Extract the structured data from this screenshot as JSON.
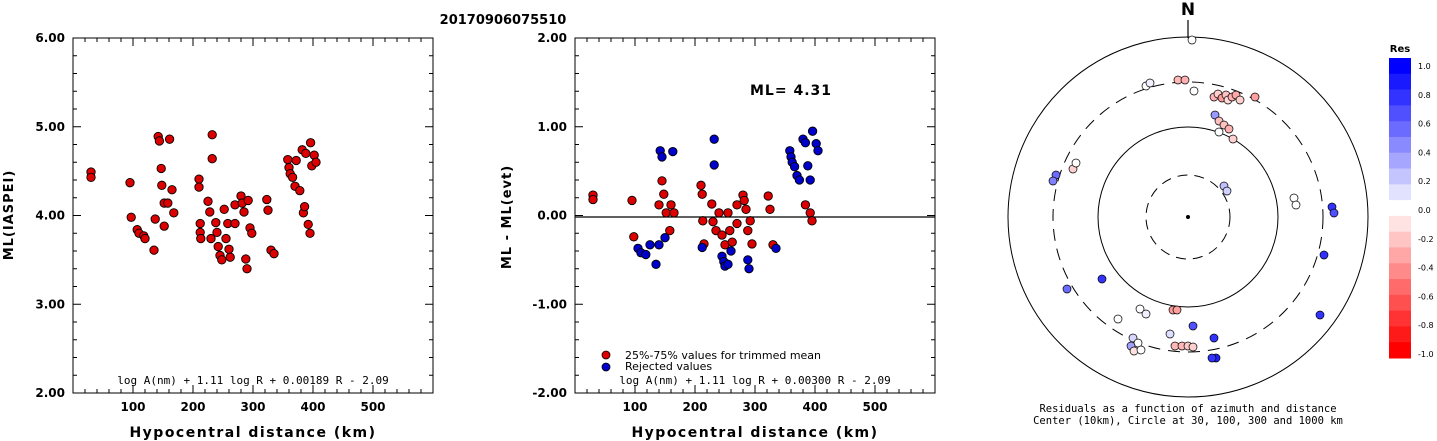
{
  "page": {
    "title": "20170906075510"
  },
  "chart_data": [
    {
      "id": "left",
      "type": "scatter",
      "xlabel": "Hypocentral distance (km)",
      "ylabel": "ML(IASPEI)",
      "xlim": [
        0,
        600
      ],
      "ylim": [
        2.0,
        6.0
      ],
      "xticks": [
        "100",
        "200",
        "300",
        "400",
        "500"
      ],
      "yticks": [
        "2.00",
        "3.00",
        "4.00",
        "5.00",
        "6.00"
      ],
      "formula": "log A(nm) + 1.11 log R + 0.00189 R - 2.09",
      "points": [
        [
          30,
          4.49
        ],
        [
          30,
          4.43
        ],
        [
          95,
          4.37
        ],
        [
          97,
          3.98
        ],
        [
          107,
          3.84
        ],
        [
          110,
          3.8
        ],
        [
          118,
          3.77
        ],
        [
          120,
          3.74
        ],
        [
          135,
          3.61
        ],
        [
          137,
          3.96
        ],
        [
          142,
          4.89
        ],
        [
          144,
          4.84
        ],
        [
          147,
          4.53
        ],
        [
          148,
          4.34
        ],
        [
          152,
          4.14
        ],
        [
          152,
          3.88
        ],
        [
          158,
          4.14
        ],
        [
          161,
          4.86
        ],
        [
          165,
          4.29
        ],
        [
          168,
          4.03
        ],
        [
          210,
          4.41
        ],
        [
          210,
          4.32
        ],
        [
          212,
          3.91
        ],
        [
          212,
          3.81
        ],
        [
          213,
          3.74
        ],
        [
          225,
          4.16
        ],
        [
          228,
          4.04
        ],
        [
          230,
          3.74
        ],
        [
          232,
          4.91
        ],
        [
          232,
          4.64
        ],
        [
          238,
          3.92
        ],
        [
          240,
          3.81
        ],
        [
          242,
          3.65
        ],
        [
          245,
          3.55
        ],
        [
          248,
          3.5
        ],
        [
          252,
          4.07
        ],
        [
          255,
          3.74
        ],
        [
          258,
          3.91
        ],
        [
          260,
          3.62
        ],
        [
          262,
          3.53
        ],
        [
          270,
          4.12
        ],
        [
          270,
          3.91
        ],
        [
          280,
          4.22
        ],
        [
          282,
          4.14
        ],
        [
          285,
          4.04
        ],
        [
          288,
          3.51
        ],
        [
          290,
          3.4
        ],
        [
          292,
          4.17
        ],
        [
          295,
          3.86
        ],
        [
          298,
          3.8
        ],
        [
          323,
          4.18
        ],
        [
          325,
          4.06
        ],
        [
          330,
          3.61
        ],
        [
          335,
          3.57
        ],
        [
          358,
          4.63
        ],
        [
          360,
          4.54
        ],
        [
          362,
          4.47
        ],
        [
          366,
          4.43
        ],
        [
          370,
          4.33
        ],
        [
          372,
          4.62
        ],
        [
          378,
          4.28
        ],
        [
          382,
          4.74
        ],
        [
          384,
          4.03
        ],
        [
          386,
          4.1
        ],
        [
          388,
          4.7
        ],
        [
          392,
          3.9
        ],
        [
          395,
          3.8
        ],
        [
          396,
          4.82
        ],
        [
          398,
          4.56
        ],
        [
          402,
          4.68
        ],
        [
          405,
          4.6
        ]
      ]
    },
    {
      "id": "middle",
      "type": "scatter",
      "xlabel": "Hypocentral distance (km)",
      "ylabel": "ML - ML(evt)",
      "xlim": [
        0,
        600
      ],
      "ylim": [
        -2.0,
        2.0
      ],
      "xticks": [
        "100",
        "200",
        "300",
        "400",
        "500"
      ],
      "yticks": [
        "-2.00",
        "-1.00",
        "0.00",
        "1.00",
        "2.00"
      ],
      "annotation": "ML= 4.31",
      "reference_line": 0.0,
      "formula": "log A(nm) + 1.11 log R + 0.00300 R - 2.09",
      "legend": {
        "position": "bottom-left",
        "entries": [
          "25%-75% values for trimmed mean",
          "Rejected values"
        ]
      },
      "series": [
        {
          "name": "25%-75% values for trimmed mean",
          "color": "#dd0000",
          "points": [
            [
              30,
              0.23
            ],
            [
              30,
              0.18
            ],
            [
              95,
              0.17
            ],
            [
              98,
              -0.24
            ],
            [
              140,
              0.12
            ],
            [
              145,
              0.39
            ],
            [
              148,
              0.24
            ],
            [
              152,
              0.03
            ],
            [
              158,
              -0.17
            ],
            [
              160,
              0.12
            ],
            [
              165,
              0.03
            ],
            [
              210,
              0.34
            ],
            [
              212,
              0.24
            ],
            [
              213,
              -0.06
            ],
            [
              215,
              -0.32
            ],
            [
              228,
              0.13
            ],
            [
              230,
              -0.07
            ],
            [
              235,
              -0.17
            ],
            [
              240,
              0.03
            ],
            [
              245,
              -0.22
            ],
            [
              250,
              -0.33
            ],
            [
              255,
              0.03
            ],
            [
              258,
              -0.17
            ],
            [
              262,
              -0.3
            ],
            [
              270,
              0.12
            ],
            [
              270,
              -0.09
            ],
            [
              280,
              0.23
            ],
            [
              282,
              0.17
            ],
            [
              285,
              0.07
            ],
            [
              288,
              -0.17
            ],
            [
              292,
              -0.06
            ],
            [
              295,
              -0.32
            ],
            [
              322,
              0.22
            ],
            [
              325,
              0.07
            ],
            [
              330,
              -0.33
            ],
            [
              384,
              0.12
            ],
            [
              392,
              0.03
            ],
            [
              395,
              -0.06
            ]
          ]
        },
        {
          "name": "Rejected values",
          "color": "#0000cc",
          "points": [
            [
              105,
              -0.37
            ],
            [
              110,
              -0.42
            ],
            [
              118,
              -0.44
            ],
            [
              125,
              -0.33
            ],
            [
              135,
              -0.55
            ],
            [
              140,
              -0.33
            ],
            [
              142,
              0.73
            ],
            [
              145,
              0.66
            ],
            [
              150,
              -0.25
            ],
            [
              163,
              0.72
            ],
            [
              212,
              -0.36
            ],
            [
              232,
              0.86
            ],
            [
              232,
              0.57
            ],
            [
              245,
              -0.46
            ],
            [
              248,
              -0.52
            ],
            [
              250,
              -0.57
            ],
            [
              255,
              -0.55
            ],
            [
              260,
              -0.4
            ],
            [
              288,
              -0.5
            ],
            [
              290,
              -0.6
            ],
            [
              335,
              -0.37
            ],
            [
              358,
              0.73
            ],
            [
              360,
              0.66
            ],
            [
              362,
              0.6
            ],
            [
              366,
              0.55
            ],
            [
              370,
              0.45
            ],
            [
              374,
              0.4
            ],
            [
              380,
              0.86
            ],
            [
              384,
              0.82
            ],
            [
              388,
              0.56
            ],
            [
              392,
              0.4
            ],
            [
              396,
              0.95
            ],
            [
              402,
              0.81
            ],
            [
              405,
              0.73
            ]
          ]
        }
      ]
    },
    {
      "id": "polar",
      "type": "scatter",
      "north_label": "N",
      "caption_line1": "Residuals as a function of azimuth and distance",
      "caption_line2": "Center (10km), Circle at 30, 100, 300 and 1000 km",
      "colorbar": {
        "title": "Res",
        "ticks": [
          "1.0",
          "0.8",
          "0.6",
          "0.4",
          "0.2",
          "0.0",
          "-0.2",
          "-0.4",
          "-0.6",
          "-0.8",
          "-1.0"
        ],
        "colors": [
          "#0000ff",
          "#1a1aff",
          "#3333ff",
          "#5050ff",
          "#6b6bff",
          "#8a8aff",
          "#a6a6ff",
          "#c4c4ff",
          "#e2e2ff",
          "#ffffff",
          "#ffe2e2",
          "#ffc4c4",
          "#ffa6a6",
          "#ff8a8a",
          "#ff6b6b",
          "#ff5050",
          "#ff3333",
          "#ff1a1a",
          "#ff0000"
        ]
      },
      "points": [
        {
          "dx": 4,
          "dy": -177,
          "color": "#ffffff"
        },
        {
          "dx": -42,
          "dy": -131,
          "color": "#ffffff"
        },
        {
          "dx": -38,
          "dy": -134,
          "color": "#f0f0ff"
        },
        {
          "dx": -10,
          "dy": -137,
          "color": "#ffb8b8"
        },
        {
          "dx": -3,
          "dy": -137,
          "color": "#ffb0b0"
        },
        {
          "dx": 6,
          "dy": -126,
          "color": "#ffffff"
        },
        {
          "dx": 26,
          "dy": -120,
          "color": "#ffb0b0"
        },
        {
          "dx": 30,
          "dy": -123,
          "color": "#ffcfcf"
        },
        {
          "dx": 34,
          "dy": -119,
          "color": "#ff9a9a"
        },
        {
          "dx": 38,
          "dy": -122,
          "color": "#ffc0c0"
        },
        {
          "dx": 40,
          "dy": -117,
          "color": "#ffd8d8"
        },
        {
          "dx": 44,
          "dy": -120,
          "color": "#ffb0b0"
        },
        {
          "dx": 48,
          "dy": -122,
          "color": "#ffa8a8"
        },
        {
          "dx": 52,
          "dy": -117,
          "color": "#ffd0d0"
        },
        {
          "dx": 67,
          "dy": -120,
          "color": "#ffa0a0"
        },
        {
          "dx": 27,
          "dy": -102,
          "color": "#9a9aff"
        },
        {
          "dx": 31,
          "dy": -96,
          "color": "#ffc0c0"
        },
        {
          "dx": 36,
          "dy": -92,
          "color": "#ffc0c0"
        },
        {
          "dx": 41,
          "dy": -88,
          "color": "#ffb0b0"
        },
        {
          "dx": 45,
          "dy": -78,
          "color": "#ffd0d0"
        },
        {
          "dx": 31,
          "dy": -85,
          "color": "#ffffff"
        },
        {
          "dx": -132,
          "dy": -42,
          "color": "#6b6bff"
        },
        {
          "dx": -135,
          "dy": -36,
          "color": "#8080ff"
        },
        {
          "dx": -115,
          "dy": -48,
          "color": "#ffd0d0"
        },
        {
          "dx": -112,
          "dy": -54,
          "color": "#ffffff"
        },
        {
          "dx": 36,
          "dy": -31,
          "color": "#c0c0ff"
        },
        {
          "dx": 39,
          "dy": -26,
          "color": "#d0d0ff"
        },
        {
          "dx": 106,
          "dy": -19,
          "color": "#ffffff"
        },
        {
          "dx": 108,
          "dy": -12,
          "color": "#ffffff"
        },
        {
          "dx": 144,
          "dy": -10,
          "color": "#3333ff"
        },
        {
          "dx": 146,
          "dy": -4,
          "color": "#5050ff"
        },
        {
          "dx": 136,
          "dy": 38,
          "color": "#3030ff"
        },
        {
          "dx": -86,
          "dy": 62,
          "color": "#3333ff"
        },
        {
          "dx": -121,
          "dy": 72,
          "color": "#6b6bff"
        },
        {
          "dx": -48,
          "dy": 92,
          "color": "#ffffff"
        },
        {
          "dx": -42,
          "dy": 97,
          "color": "#f0f0ff"
        },
        {
          "dx": -70,
          "dy": 102,
          "color": "#ffffff"
        },
        {
          "dx": -15,
          "dy": 93,
          "color": "#ff9a9a"
        },
        {
          "dx": -11,
          "dy": 93,
          "color": "#ffa0a0"
        },
        {
          "dx": 5,
          "dy": 109,
          "color": "#5050ff"
        },
        {
          "dx": 132,
          "dy": 98,
          "color": "#3333ff"
        },
        {
          "dx": -55,
          "dy": 121,
          "color": "#d8d8ff"
        },
        {
          "dx": -50,
          "dy": 126,
          "color": "#ffffff"
        },
        {
          "dx": -57,
          "dy": 129,
          "color": "#a0a0ff"
        },
        {
          "dx": -54,
          "dy": 134,
          "color": "#ffe0e0"
        },
        {
          "dx": -47,
          "dy": 133,
          "color": "#ffffff"
        },
        {
          "dx": -18,
          "dy": 117,
          "color": "#dedeff"
        },
        {
          "dx": -13,
          "dy": 129,
          "color": "#ffb8b8"
        },
        {
          "dx": -6,
          "dy": 129,
          "color": "#ffb8b8"
        },
        {
          "dx": 0,
          "dy": 129,
          "color": "#ffc8c8"
        },
        {
          "dx": 5,
          "dy": 130,
          "color": "#ffd0d0"
        },
        {
          "dx": 26,
          "dy": 121,
          "color": "#3333ff"
        },
        {
          "dx": 28,
          "dy": 141,
          "color": "#2020ff"
        },
        {
          "dx": 24,
          "dy": 141,
          "color": "#3333ff"
        }
      ]
    }
  ]
}
